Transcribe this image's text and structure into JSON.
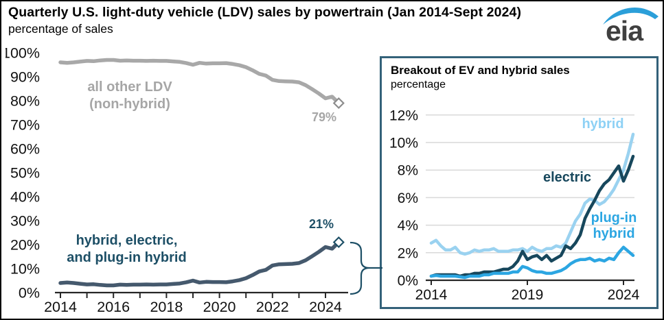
{
  "header": {
    "title": "Quarterly U.S. light-duty vehicle (LDV) sales by powertrain (Jan 2014-Sept 2024)",
    "subtitle": "percentage of sales",
    "logo_text": "eia"
  },
  "colors": {
    "all_other_line": "#a8a8a8",
    "combined_line": "#45596d",
    "hybrid_line": "#9ad2f0",
    "electric_line": "#17475c",
    "plug_in_hybrid_line": "#2ca6e2",
    "annotation_navy": "#1d4f66",
    "inset_border": "#336179",
    "gridline": "#d9d9d9",
    "axis": "#262626",
    "logo_blue": "#2b9fd9"
  },
  "annotations": {
    "all_other_line1": "all other LDV",
    "all_other_line2": "(non-hybrid)",
    "all_other_end": "79%",
    "combined_line1": "hybrid, electric,",
    "combined_line2": "and plug-in hybrid",
    "combined_end": "21%",
    "inset_hybrid": "hybrid",
    "inset_electric": "electric",
    "inset_phev_line1": "plug-in",
    "inset_phev_line2": "hybrid"
  },
  "inset": {
    "title": "Breakout of EV and hybrid sales",
    "subtitle": "percentage"
  },
  "chart_data": [
    {
      "type": "line",
      "title": "Quarterly U.S. light-duty vehicle (LDV) sales by powertrain (Jan 2014-Sept 2024)",
      "ylabel": "percentage of sales",
      "x_start": 2014.0,
      "x_step": 0.25,
      "x_range_note": "quarterly, 2014 Q1 through 2024 Q3",
      "ylim": [
        0,
        100
      ],
      "grid": false,
      "legend_position": "inline-labels",
      "y_ticks": [
        0,
        10,
        20,
        30,
        40,
        50,
        60,
        70,
        80,
        90,
        100
      ],
      "y_tick_labels": [
        "0%",
        "10%",
        "20%",
        "30%",
        "40%",
        "50%",
        "60%",
        "70%",
        "80%",
        "90%",
        "100%"
      ],
      "x_tick_years": [
        2014,
        2015,
        2016,
        2017,
        2018,
        2019,
        2020,
        2021,
        2022,
        2023,
        2024
      ],
      "x_tick_labels": [
        "2014",
        "",
        "2016",
        "",
        "2018",
        "",
        "2020",
        "",
        "2022",
        "",
        "2024"
      ],
      "series": [
        {
          "name": "all other LDV (non-hybrid)",
          "color": "#a8a8a8",
          "end_label": "79%",
          "end_marker": true,
          "marker_color": "#8c8c8c",
          "values": [
            96.0,
            95.8,
            96.0,
            96.3,
            96.6,
            96.5,
            96.8,
            97.0,
            97.0,
            96.7,
            96.8,
            96.7,
            96.7,
            96.6,
            96.7,
            96.6,
            96.6,
            96.4,
            96.2,
            95.7,
            95.0,
            95.8,
            95.5,
            95.6,
            95.6,
            95.7,
            95.3,
            94.8,
            94.0,
            92.7,
            91.2,
            90.5,
            88.7,
            88.2,
            88.1,
            88.0,
            87.7,
            86.5,
            84.8,
            83.0,
            81.0,
            81.7,
            79.0
          ]
        },
        {
          "name": "hybrid, electric, and plug-in hybrid",
          "color": "#45596d",
          "end_label": "21%",
          "end_marker": true,
          "marker_color": "#1d4f66",
          "values": [
            4.0,
            4.2,
            4.0,
            3.7,
            3.4,
            3.5,
            3.2,
            3.0,
            3.0,
            3.3,
            3.2,
            3.3,
            3.3,
            3.4,
            3.3,
            3.4,
            3.4,
            3.6,
            3.8,
            4.3,
            5.0,
            4.2,
            4.5,
            4.4,
            4.4,
            4.3,
            4.7,
            5.2,
            6.0,
            7.3,
            8.8,
            9.5,
            11.3,
            11.8,
            11.9,
            12.0,
            12.3,
            13.5,
            15.2,
            17.0,
            19.0,
            18.3,
            21.0
          ]
        }
      ]
    },
    {
      "type": "line",
      "title": "Breakout of EV and hybrid sales",
      "ylabel": "percentage",
      "x_start": 2014.0,
      "x_step": 0.25,
      "x_range_note": "quarterly, 2014 Q1 through 2024 Q3",
      "ylim": [
        0,
        12
      ],
      "grid": true,
      "legend_position": "inline-labels",
      "y_ticks": [
        0,
        2,
        4,
        6,
        8,
        10,
        12
      ],
      "y_tick_labels": [
        "0%",
        "2%",
        "4%",
        "6%",
        "8%",
        "10%",
        "12%"
      ],
      "x_tick_years": [
        2014,
        2019,
        2024
      ],
      "x_tick_labels": [
        "2014",
        "2019",
        "2024"
      ],
      "series": [
        {
          "name": "hybrid",
          "color": "#9ad2f0",
          "end_marker": false,
          "values": [
            2.7,
            2.9,
            2.5,
            2.2,
            2.2,
            2.4,
            2.0,
            1.9,
            2.0,
            2.2,
            2.1,
            2.2,
            2.2,
            2.3,
            2.1,
            2.1,
            2.1,
            2.2,
            2.2,
            2.3,
            2.1,
            2.4,
            2.2,
            2.1,
            2.3,
            2.3,
            2.5,
            2.4,
            2.7,
            3.5,
            4.3,
            4.8,
            5.6,
            5.9,
            5.8,
            5.5,
            5.7,
            6.1,
            6.6,
            7.3,
            8.0,
            9.2,
            10.6
          ]
        },
        {
          "name": "electric",
          "color": "#17475c",
          "end_marker": false,
          "values": [
            0.3,
            0.4,
            0.4,
            0.4,
            0.4,
            0.4,
            0.3,
            0.4,
            0.4,
            0.5,
            0.5,
            0.6,
            0.6,
            0.6,
            0.7,
            0.8,
            0.8,
            1.0,
            1.4,
            2.1,
            1.5,
            1.7,
            1.8,
            1.5,
            1.8,
            1.4,
            1.6,
            1.8,
            2.5,
            2.3,
            2.7,
            3.3,
            4.5,
            5.2,
            5.8,
            6.5,
            7.0,
            7.3,
            7.8,
            8.3,
            7.2,
            8.0,
            9.0
          ]
        },
        {
          "name": "plug-in hybrid",
          "color": "#2ca6e2",
          "end_marker": false,
          "values": [
            0.3,
            0.35,
            0.3,
            0.3,
            0.3,
            0.3,
            0.25,
            0.2,
            0.3,
            0.3,
            0.3,
            0.4,
            0.4,
            0.5,
            0.5,
            0.5,
            0.5,
            0.6,
            0.6,
            1.0,
            0.9,
            0.7,
            0.6,
            0.6,
            0.5,
            0.5,
            0.6,
            0.7,
            0.9,
            1.2,
            1.4,
            1.5,
            1.5,
            1.6,
            1.4,
            1.5,
            1.4,
            1.6,
            1.5,
            2.0,
            2.4,
            2.1,
            1.8
          ]
        }
      ]
    }
  ]
}
